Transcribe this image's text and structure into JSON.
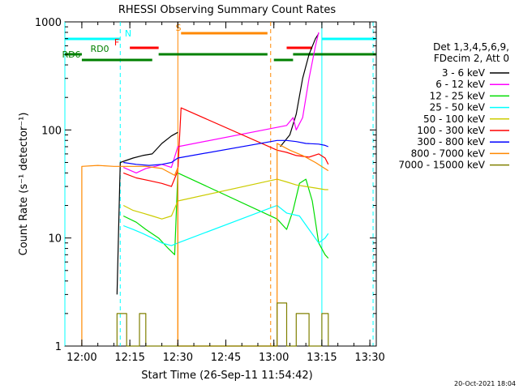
{
  "chart_data": {
    "type": "line",
    "title": "RHESSI Observing Summary Count Rates",
    "xlabel": "Start Time (26-Sep-11 11:54:42)",
    "ylabel": "Count Rate (s⁻¹ detector⁻¹)",
    "y_scale": "log",
    "ylim": [
      1,
      1000
    ],
    "xlim": [
      "11:54:42",
      "13:32:00"
    ],
    "x_ticks": [
      "12:00",
      "12:15",
      "12:30",
      "12:45",
      "13:00",
      "13:15",
      "13:30"
    ],
    "y_ticks": [
      "1",
      "10",
      "100",
      "1000"
    ],
    "legend_header": [
      "Det 1,3,4,5,6,9,",
      "FDecim 2, Att 0"
    ],
    "legend_placement": "right",
    "footer_date": "20-Oct-2021 18:04",
    "series": [
      {
        "name": "3 - 6 keV",
        "color": "#000000",
        "points": [
          [
            "12:11",
            3
          ],
          [
            "12:12",
            50
          ],
          [
            "12:16",
            55
          ],
          [
            "12:19",
            58
          ],
          [
            "12:22",
            60
          ],
          [
            "12:25",
            75
          ],
          [
            "12:28",
            88
          ],
          [
            "12:30",
            95
          ],
          [
            "13:00",
            null
          ],
          [
            "13:02",
            70
          ],
          [
            "13:05",
            90
          ],
          [
            "13:07",
            140
          ],
          [
            "13:09",
            300
          ],
          [
            "13:11",
            500
          ],
          [
            "13:13",
            700
          ],
          [
            "13:14",
            780
          ],
          [
            "13:15",
            null
          ],
          [
            "13:15",
            1.6
          ]
        ]
      },
      {
        "name": "6 - 12 keV",
        "color": "#ff00ff",
        "points": [
          [
            "12:13",
            45
          ],
          [
            "12:17",
            40
          ],
          [
            "12:20",
            44
          ],
          [
            "12:23",
            46
          ],
          [
            "12:25",
            48
          ],
          [
            "12:28",
            45
          ],
          [
            "12:30",
            70
          ],
          [
            "13:04",
            110
          ],
          [
            "13:06",
            130
          ],
          [
            "13:07",
            100
          ],
          [
            "13:09",
            130
          ],
          [
            "13:11",
            300
          ],
          [
            "13:13",
            600
          ],
          [
            "13:14",
            800
          ]
        ]
      },
      {
        "name": "12 - 25 keV",
        "color": "#00dd00",
        "points": [
          [
            "12:13",
            16
          ],
          [
            "12:17",
            14
          ],
          [
            "12:20",
            12
          ],
          [
            "12:24",
            10
          ],
          [
            "12:27",
            8
          ],
          [
            "12:29",
            7
          ],
          [
            "12:30",
            40
          ],
          [
            "13:01",
            15
          ],
          [
            "13:04",
            12
          ],
          [
            "13:06",
            18
          ],
          [
            "13:08",
            32
          ],
          [
            "13:10",
            35
          ],
          [
            "13:12",
            22
          ],
          [
            "13:14",
            9
          ],
          [
            "13:16",
            7
          ],
          [
            "13:17",
            6.5
          ]
        ]
      },
      {
        "name": "25 - 50 keV",
        "color": "#00ffff",
        "points": [
          [
            "12:13",
            13
          ],
          [
            "12:16",
            12
          ],
          [
            "12:19",
            11
          ],
          [
            "12:22",
            10
          ],
          [
            "12:25",
            9
          ],
          [
            "12:28",
            8.5
          ],
          [
            "12:30",
            9
          ],
          [
            "13:01",
            20
          ],
          [
            "13:04",
            17
          ],
          [
            "13:08",
            16
          ],
          [
            "13:11",
            12
          ],
          [
            "13:14",
            9
          ],
          [
            "13:16",
            10
          ],
          [
            "13:17",
            11
          ]
        ]
      },
      {
        "name": "50 - 100 keV",
        "color": "#cccc00",
        "points": [
          [
            "12:13",
            20
          ],
          [
            "12:16",
            18
          ],
          [
            "12:19",
            17
          ],
          [
            "12:22",
            16
          ],
          [
            "12:25",
            15
          ],
          [
            "12:28",
            16
          ],
          [
            "12:30",
            22
          ],
          [
            "13:01",
            35
          ],
          [
            "13:04",
            33
          ],
          [
            "13:07",
            31
          ],
          [
            "13:10",
            30
          ],
          [
            "13:13",
            29
          ],
          [
            "13:16",
            28
          ],
          [
            "13:17",
            28
          ]
        ]
      },
      {
        "name": "100 - 300 keV",
        "color": "#ff0000",
        "points": [
          [
            "12:13",
            40
          ],
          [
            "12:17",
            36
          ],
          [
            "12:21",
            34
          ],
          [
            "12:25",
            32
          ],
          [
            "12:28",
            30
          ],
          [
            "12:30",
            42
          ],
          [
            "12:31",
            160
          ],
          [
            "13:01",
            65
          ],
          [
            "13:04",
            62
          ],
          [
            "13:07",
            58
          ],
          [
            "13:11",
            56
          ],
          [
            "13:14",
            60
          ],
          [
            "13:16",
            55
          ],
          [
            "13:17",
            48
          ]
        ]
      },
      {
        "name": "300 - 800 keV",
        "color": "#0000ff",
        "points": [
          [
            "12:13",
            50
          ],
          [
            "12:17",
            48
          ],
          [
            "12:21",
            47
          ],
          [
            "12:25",
            48
          ],
          [
            "12:28",
            50
          ],
          [
            "12:30",
            55
          ],
          [
            "13:01",
            80
          ],
          [
            "13:04",
            80
          ],
          [
            "13:07",
            78
          ],
          [
            "13:10",
            75
          ],
          [
            "13:14",
            74
          ],
          [
            "13:16",
            72
          ],
          [
            "13:17",
            70
          ]
        ]
      },
      {
        "name": "800 - 7000 keV",
        "color": "#ff8800",
        "points": [
          [
            "12:00",
            1
          ],
          [
            "12:00",
            46
          ],
          [
            "12:05",
            47
          ],
          [
            "12:10",
            46
          ],
          [
            "12:15",
            46
          ],
          [
            "12:20",
            46
          ],
          [
            "12:25",
            44
          ],
          [
            "12:29",
            38
          ],
          [
            "12:30",
            45
          ],
          [
            "12:30",
            1
          ],
          [
            "13:01",
            1
          ],
          [
            "13:01",
            75
          ],
          [
            "13:05",
            65
          ],
          [
            "13:09",
            58
          ],
          [
            "13:13",
            50
          ],
          [
            "13:17",
            42
          ]
        ]
      },
      {
        "name": "7000 - 15000 keV",
        "color": "#808000",
        "points": [
          [
            "12:11",
            1
          ],
          [
            "12:11",
            2
          ],
          [
            "12:14",
            2
          ],
          [
            "12:14",
            1
          ],
          [
            "12:18",
            1
          ],
          [
            "12:18",
            2
          ],
          [
            "12:20",
            2
          ],
          [
            "12:20",
            1
          ],
          [
            "13:01",
            1
          ],
          [
            "13:01",
            2.5
          ],
          [
            "13:04",
            2.5
          ],
          [
            "13:04",
            1
          ],
          [
            "13:07",
            1
          ],
          [
            "13:07",
            2
          ],
          [
            "13:11",
            2
          ],
          [
            "13:11",
            1
          ],
          [
            "13:15",
            1
          ],
          [
            "13:15",
            2
          ],
          [
            "13:17",
            2
          ],
          [
            "13:17",
            1
          ]
        ]
      }
    ],
    "flag_bars": [
      {
        "label": "N",
        "color": "#00ffff",
        "segments": [
          [
            "11:54:42",
            "12:12"
          ],
          [
            "13:15",
            "13:32"
          ]
        ]
      },
      {
        "label": "F",
        "color": "#ff0000",
        "segments": [
          [
            "12:15",
            "12:24"
          ],
          [
            "13:04",
            "13:12"
          ]
        ]
      },
      {
        "label": "S",
        "color": "#ff8800",
        "segments": [
          [
            "12:31",
            "12:58"
          ]
        ]
      },
      {
        "label": "RD0",
        "color": "#008000",
        "segments": [
          [
            "11:54:42",
            "12:00"
          ],
          [
            "12:24",
            "12:58"
          ],
          [
            "13:06",
            "13:32"
          ]
        ]
      },
      {
        "label": "RD6",
        "color": "#008000",
        "segments": [
          [
            "12:00",
            "12:22"
          ],
          [
            "13:00",
            "13:06"
          ]
        ]
      }
    ],
    "vlines": [
      {
        "x": "11:54:42",
        "color": "#00ffff",
        "dash": false
      },
      {
        "x": "12:12",
        "color": "#00ffff",
        "dash": true
      },
      {
        "x": "12:30",
        "color": "#ff8800",
        "dash": false
      },
      {
        "x": "12:59",
        "color": "#ff8800",
        "dash": true
      },
      {
        "x": "13:15",
        "color": "#00ffff",
        "dash": false
      },
      {
        "x": "13:31",
        "color": "#00ffff",
        "dash": true
      }
    ]
  }
}
